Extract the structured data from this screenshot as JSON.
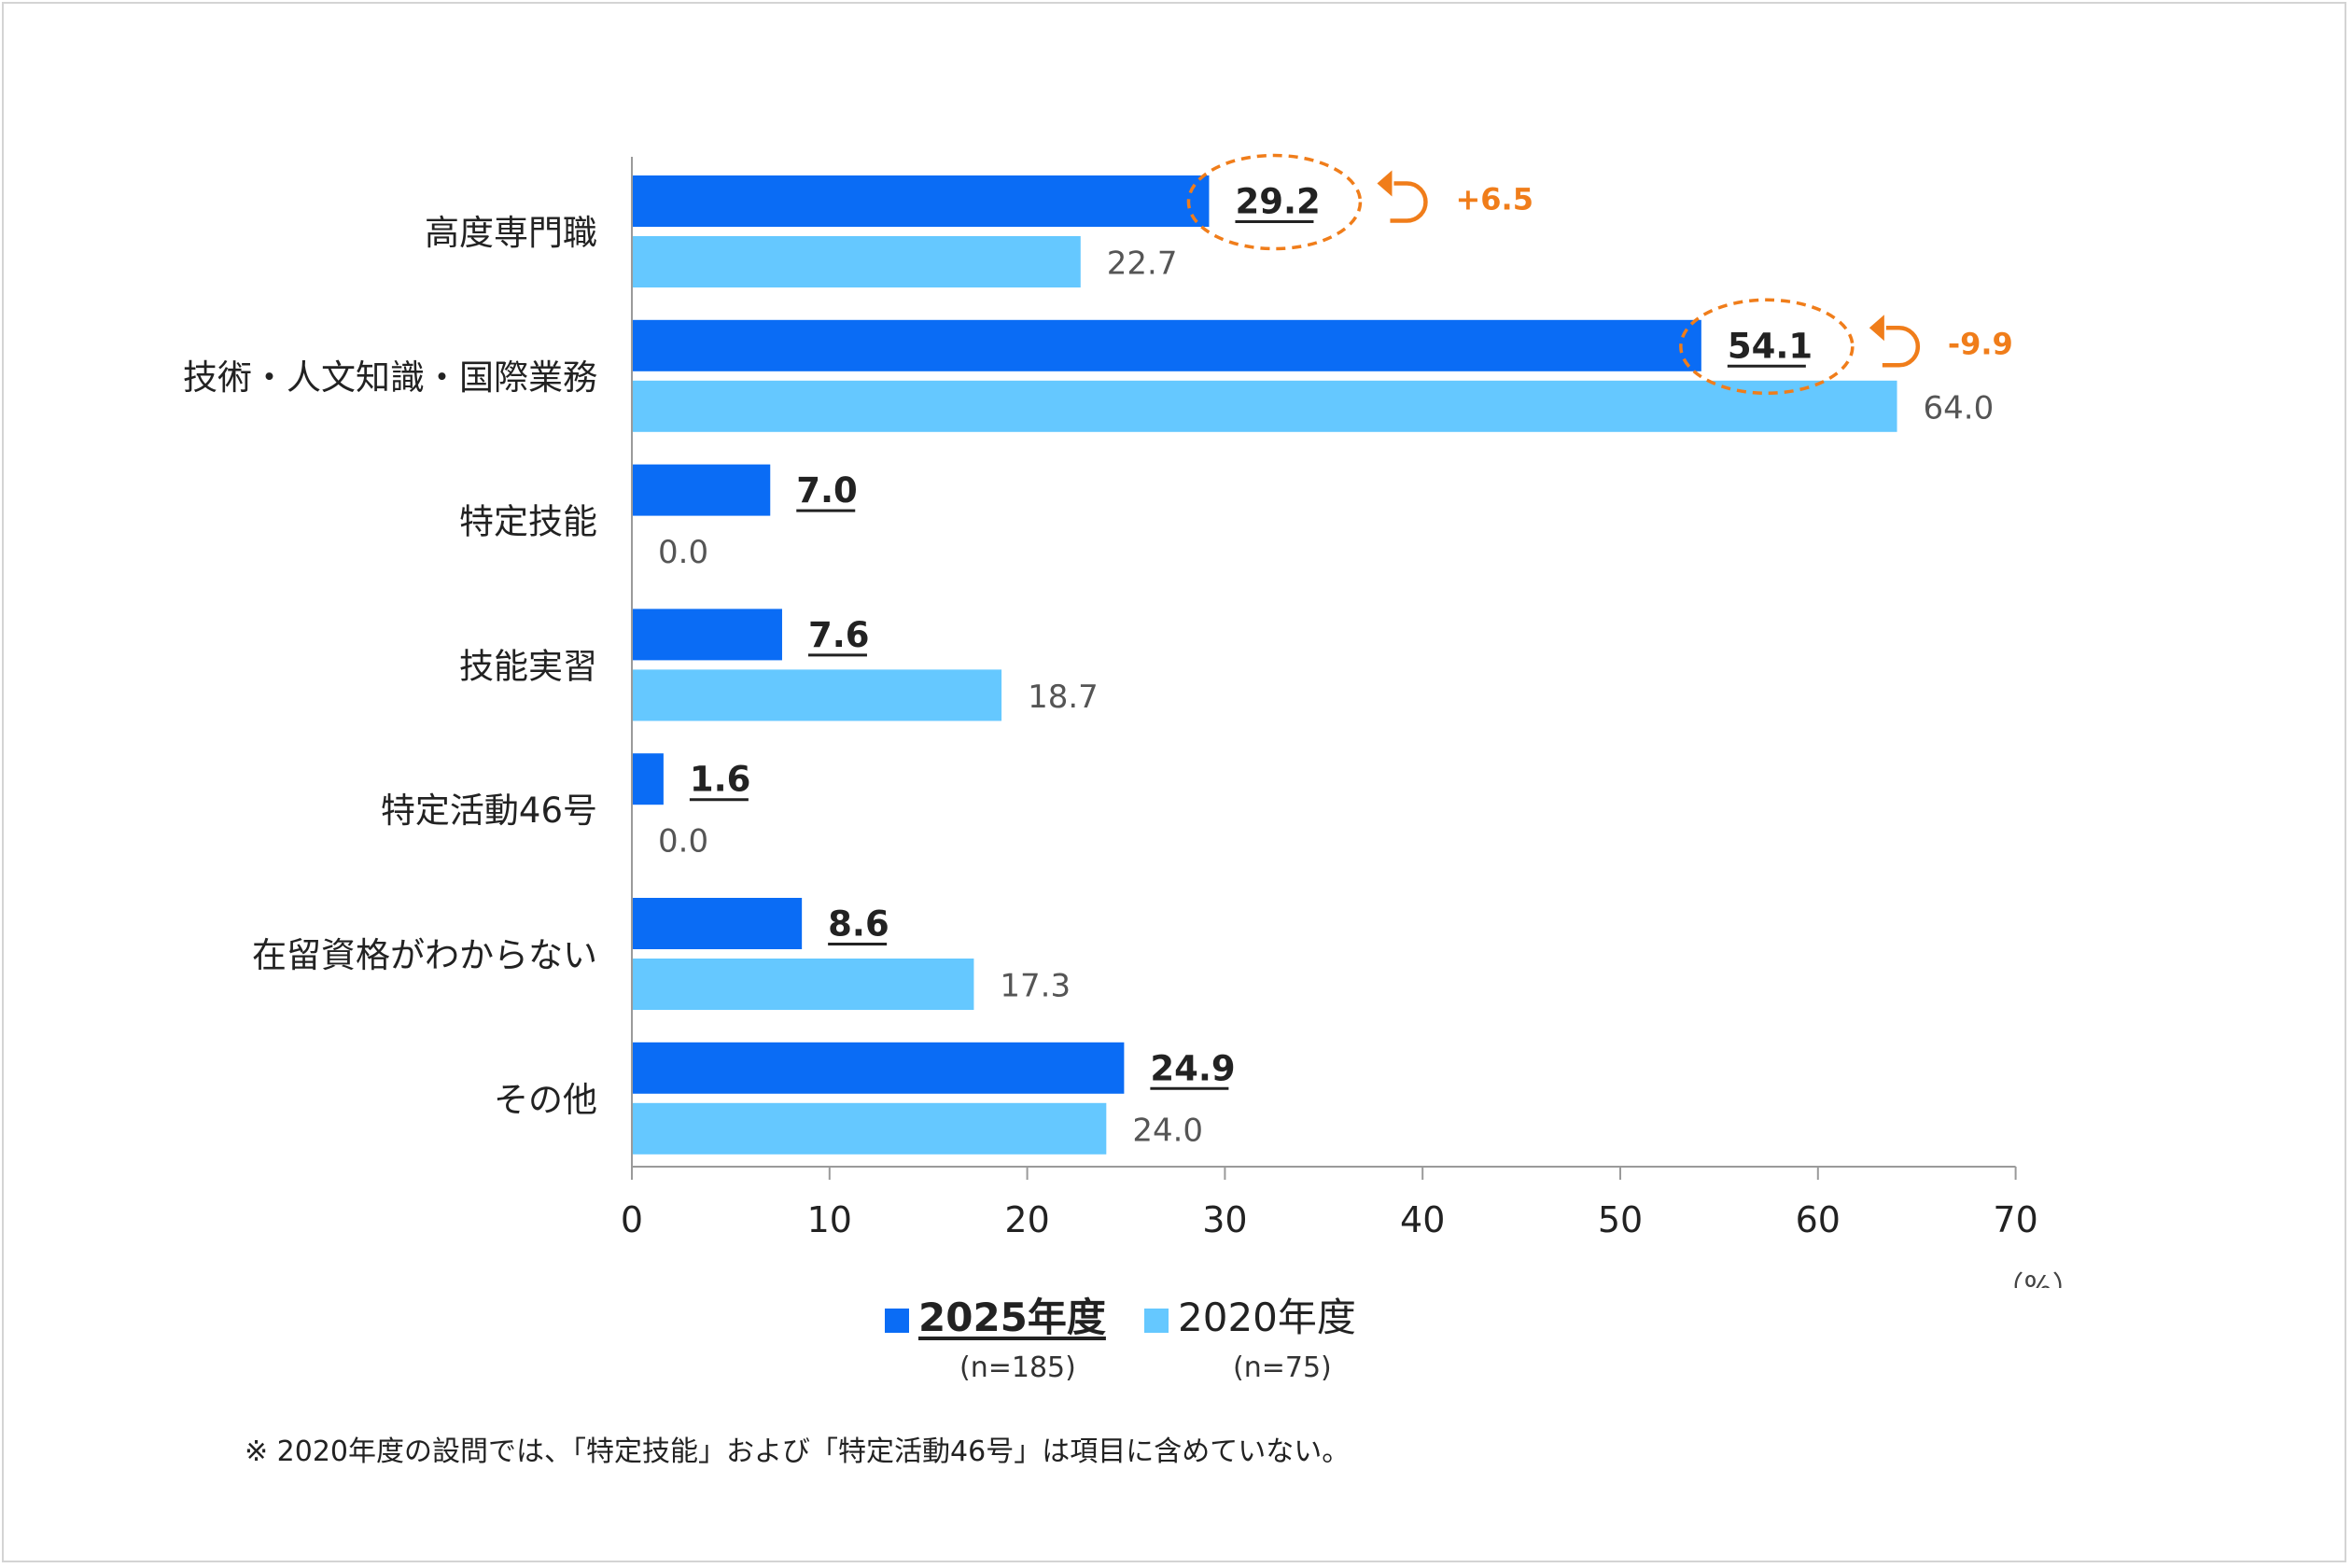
{
  "chart_data": {
    "type": "bar",
    "orientation": "horizontal",
    "categories": [
      "高度専門職",
      "技術・人文知識・国際業務",
      "特定技能",
      "技能実習",
      "特定活動46号",
      "在留資格がわからない",
      "その他"
    ],
    "series": [
      {
        "name": "2025年度",
        "n_label": "(n=185)",
        "color": "#0a6cf5",
        "values": [
          29.2,
          54.1,
          7.0,
          7.6,
          1.6,
          8.6,
          24.9
        ],
        "value_labels": [
          "29.2",
          "54.1",
          "7.0",
          "7.6",
          "1.6",
          "8.6",
          "24.9"
        ]
      },
      {
        "name": "2020年度",
        "n_label": "(n=75)",
        "color": "#65c8ff",
        "values": [
          22.7,
          64.0,
          0.0,
          18.7,
          0.0,
          17.3,
          24.0
        ],
        "value_labels": [
          "22.7",
          "64.0",
          "0.0",
          "18.7",
          "0.0",
          "17.3",
          "24.0"
        ]
      }
    ],
    "x_ticks": [
      "0",
      "10",
      "20",
      "30",
      "40",
      "50",
      "60",
      "70"
    ],
    "xlim": [
      0,
      70
    ],
    "unit_label": "（%）",
    "highlights": [
      {
        "category_index": 0,
        "change": "+6.5",
        "color": "#f07d1a"
      },
      {
        "category_index": 1,
        "change": "-9.9",
        "color": "#f07d1a"
      }
    ],
    "legend_position": "bottom"
  },
  "footnote": "※ 2020年度の設問では、「特定技能」および「特定活動46号」は項目に含めていない。"
}
